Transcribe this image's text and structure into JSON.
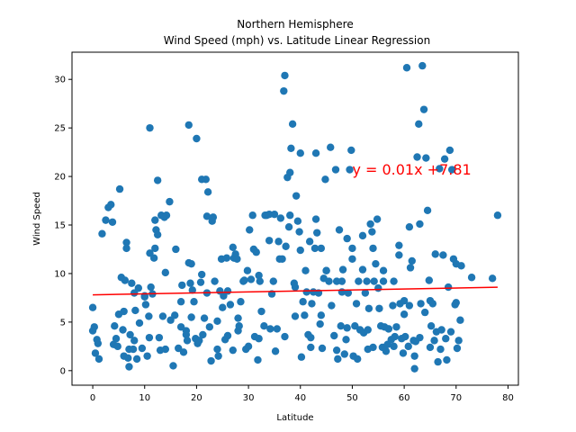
{
  "chart_data": {
    "type": "scatter",
    "title": "Northern Hemisphere",
    "subtitle": "Wind Speed (mph) vs. Latitude Linear Regression",
    "xlabel": "Latitude",
    "ylabel": "Wind Speed",
    "xlim": [
      -4,
      82
    ],
    "ylim": [
      -1.5,
      32.8
    ],
    "xticks": [
      0,
      10,
      20,
      30,
      40,
      50,
      60,
      70,
      80
    ],
    "yticks": [
      0,
      5,
      10,
      15,
      20,
      25,
      30
    ],
    "grid": false,
    "point_color": "#1f77b4",
    "regression": {
      "slope": 0.01,
      "intercept": 7.81,
      "x_range": [
        0,
        78
      ],
      "color": "#ff0000",
      "equation_label": "y = 0.01x +7.81",
      "label_x": 50,
      "label_y": 20.2
    },
    "points": [
      [
        0,
        6.5
      ],
      [
        0,
        4.1
      ],
      [
        0.3,
        4.5
      ],
      [
        0.5,
        1.8
      ],
      [
        0.8,
        3.2
      ],
      [
        1,
        2.8
      ],
      [
        1.2,
        1.2
      ],
      [
        1.8,
        14.1
      ],
      [
        2.5,
        15.5
      ],
      [
        3,
        16.8
      ],
      [
        3.5,
        17.1
      ],
      [
        3.8,
        15.3
      ],
      [
        4,
        2.7
      ],
      [
        4.2,
        4.6
      ],
      [
        4.5,
        3.3
      ],
      [
        4.8,
        2.5
      ],
      [
        5,
        5.8
      ],
      [
        5.2,
        18.7
      ],
      [
        5.5,
        9.6
      ],
      [
        5.8,
        4.2
      ],
      [
        6,
        1.5
      ],
      [
        6,
        6.1
      ],
      [
        6.2,
        9.3
      ],
      [
        6.5,
        13.2
      ],
      [
        6.5,
        12.6
      ],
      [
        6.8,
        1.3
      ],
      [
        7,
        0.4
      ],
      [
        7,
        2.2
      ],
      [
        7.2,
        3.7
      ],
      [
        7.5,
        9.0
      ],
      [
        7.8,
        2.2
      ],
      [
        8,
        3.1
      ],
      [
        8,
        8.0
      ],
      [
        8.2,
        6.2
      ],
      [
        8.5,
        1.2
      ],
      [
        8.8,
        8.5
      ],
      [
        9,
        4.9
      ],
      [
        9.5,
        2.3
      ],
      [
        10,
        7.7
      ],
      [
        10,
        7.6
      ],
      [
        10.2,
        6.8
      ],
      [
        10.5,
        1.5
      ],
      [
        10.8,
        5.6
      ],
      [
        10.9,
        3.4
      ],
      [
        11,
        12.1
      ],
      [
        11,
        25.0
      ],
      [
        11.2,
        8.6
      ],
      [
        11.5,
        7.9
      ],
      [
        11.8,
        11.6
      ],
      [
        12,
        12.6
      ],
      [
        12,
        15.5
      ],
      [
        12.2,
        14.5
      ],
      [
        12.5,
        14.0
      ],
      [
        12.5,
        19.6
      ],
      [
        12.8,
        3.4
      ],
      [
        13,
        2.1
      ],
      [
        13.2,
        16.0
      ],
      [
        13.5,
        5.6
      ],
      [
        13.8,
        15.8
      ],
      [
        14,
        2.2
      ],
      [
        14,
        10.1
      ],
      [
        14.2,
        16.0
      ],
      [
        14.8,
        17.4
      ],
      [
        15,
        5.2
      ],
      [
        15.5,
        0.5
      ],
      [
        15.8,
        5.7
      ],
      [
        16,
        12.5
      ],
      [
        16.5,
        2.3
      ],
      [
        17,
        7.1
      ],
      [
        17,
        4.5
      ],
      [
        17.2,
        8.8
      ],
      [
        17.5,
        1.9
      ],
      [
        18,
        4.1
      ],
      [
        18,
        3.7
      ],
      [
        18.2,
        3.1
      ],
      [
        18.5,
        25.3
      ],
      [
        18.5,
        11.1
      ],
      [
        18.8,
        9.0
      ],
      [
        19,
        11.0
      ],
      [
        19,
        5.5
      ],
      [
        19.2,
        8.3
      ],
      [
        19.5,
        7.1
      ],
      [
        19.8,
        3.3
      ],
      [
        20,
        23.9
      ],
      [
        20.2,
        2.8
      ],
      [
        20.5,
        3.1
      ],
      [
        20.8,
        9.1
      ],
      [
        21,
        9.9
      ],
      [
        21,
        19.7
      ],
      [
        21.2,
        3.7
      ],
      [
        21.5,
        5.4
      ],
      [
        21.8,
        19.7
      ],
      [
        22,
        15.9
      ],
      [
        22,
        8.0
      ],
      [
        22.2,
        18.4
      ],
      [
        22.5,
        4.5
      ],
      [
        22.8,
        1.0
      ],
      [
        23,
        15.4
      ],
      [
        23.2,
        15.8
      ],
      [
        23.5,
        9.2
      ],
      [
        24,
        2.2
      ],
      [
        24,
        5.1
      ],
      [
        24.2,
        1.5
      ],
      [
        24.5,
        8.2
      ],
      [
        24.8,
        11.5
      ],
      [
        25,
        6.5
      ],
      [
        25.2,
        7.7
      ],
      [
        25.5,
        3.2
      ],
      [
        25.8,
        11.6
      ],
      [
        26,
        8.2
      ],
      [
        26,
        3.6
      ],
      [
        26.5,
        6.8
      ],
      [
        27,
        12.7
      ],
      [
        27,
        2.1
      ],
      [
        27.2,
        11.6
      ],
      [
        27.5,
        12.0
      ],
      [
        27.8,
        11.5
      ],
      [
        28,
        4.1
      ],
      [
        28,
        5.4
      ],
      [
        28.2,
        4.6
      ],
      [
        28.5,
        7.1
      ],
      [
        29,
        9.2
      ],
      [
        29.2,
        9.3
      ],
      [
        29.5,
        2.2
      ],
      [
        29.8,
        10.3
      ],
      [
        30,
        2.5
      ],
      [
        30.2,
        14.5
      ],
      [
        30.5,
        9.4
      ],
      [
        30.8,
        16.0
      ],
      [
        31,
        12.5
      ],
      [
        31.2,
        3.5
      ],
      [
        31.5,
        12.2
      ],
      [
        31.8,
        1.1
      ],
      [
        32,
        9.8
      ],
      [
        32,
        3.3
      ],
      [
        32.2,
        9.2
      ],
      [
        32.5,
        6.1
      ],
      [
        33,
        4.6
      ],
      [
        33.2,
        16.0
      ],
      [
        33.5,
        16.0
      ],
      [
        34,
        16.1
      ],
      [
        34,
        13.4
      ],
      [
        34.2,
        4.3
      ],
      [
        34.5,
        7.9
      ],
      [
        34.8,
        9.2
      ],
      [
        35,
        16.1
      ],
      [
        35.2,
        2.0
      ],
      [
        35.5,
        4.3
      ],
      [
        35.8,
        13.3
      ],
      [
        36,
        11.5
      ],
      [
        36.2,
        15.7
      ],
      [
        36.5,
        11.5
      ],
      [
        36.8,
        28.8
      ],
      [
        37,
        30.4
      ],
      [
        37,
        3.5
      ],
      [
        37.2,
        12.8
      ],
      [
        37.5,
        19.9
      ],
      [
        37.8,
        14.8
      ],
      [
        38,
        16.0
      ],
      [
        38,
        20.4
      ],
      [
        38.2,
        22.9
      ],
      [
        38.5,
        25.4
      ],
      [
        38.8,
        9.0
      ],
      [
        39,
        5.6
      ],
      [
        39,
        8.6
      ],
      [
        39.2,
        18.0
      ],
      [
        39.5,
        15.4
      ],
      [
        39.8,
        14.3
      ],
      [
        40,
        12.4
      ],
      [
        40,
        22.4
      ],
      [
        40.2,
        1.4
      ],
      [
        40.5,
        7.1
      ],
      [
        40.8,
        5.7
      ],
      [
        41,
        10.3
      ],
      [
        41.2,
        8.1
      ],
      [
        41.5,
        3.7
      ],
      [
        41.8,
        13.3
      ],
      [
        42,
        2.4
      ],
      [
        42,
        3.4
      ],
      [
        42.2,
        6.9
      ],
      [
        42.5,
        8.1
      ],
      [
        42.8,
        12.6
      ],
      [
        43,
        15.6
      ],
      [
        43,
        22.4
      ],
      [
        43.2,
        14.2
      ],
      [
        43.5,
        8.0
      ],
      [
        43.8,
        4.8
      ],
      [
        44,
        12.6
      ],
      [
        44,
        5.7
      ],
      [
        44.2,
        2.3
      ],
      [
        44.5,
        9.5
      ],
      [
        44.8,
        19.7
      ],
      [
        45,
        10.3
      ],
      [
        45,
        10.3
      ],
      [
        45.5,
        9.2
      ],
      [
        45.8,
        23.0
      ],
      [
        46,
        6.7
      ],
      [
        46.5,
        3.6
      ],
      [
        46.8,
        20.7
      ],
      [
        47,
        9.2
      ],
      [
        47,
        2.1
      ],
      [
        47.2,
        1.2
      ],
      [
        47.5,
        14.5
      ],
      [
        47.8,
        4.6
      ],
      [
        48,
        8.1
      ],
      [
        48,
        9.2
      ],
      [
        48.2,
        10.4
      ],
      [
        48.5,
        1.7
      ],
      [
        48.8,
        3.2
      ],
      [
        49,
        13.6
      ],
      [
        49,
        4.4
      ],
      [
        49.2,
        8.0
      ],
      [
        49.5,
        20.7
      ],
      [
        49.8,
        22.7
      ],
      [
        50,
        12.6
      ],
      [
        50,
        11.5
      ],
      [
        50.2,
        1.5
      ],
      [
        50.5,
        4.6
      ],
      [
        50.8,
        6.9
      ],
      [
        51,
        1.2
      ],
      [
        51.2,
        9.2
      ],
      [
        51.5,
        4.2
      ],
      [
        52,
        13.9
      ],
      [
        52,
        10.4
      ],
      [
        52.2,
        3.9
      ],
      [
        52.5,
        8.0
      ],
      [
        52.8,
        9.2
      ],
      [
        53,
        2.2
      ],
      [
        53,
        4.2
      ],
      [
        53.2,
        6.4
      ],
      [
        53.5,
        15.1
      ],
      [
        53.8,
        14.3
      ],
      [
        54,
        12.6
      ],
      [
        54,
        2.4
      ],
      [
        54.2,
        9.2
      ],
      [
        54.5,
        11.0
      ],
      [
        54.8,
        15.6
      ],
      [
        55,
        8.5
      ],
      [
        55.2,
        6.4
      ],
      [
        55.5,
        4.6
      ],
      [
        55.8,
        2.4
      ],
      [
        56,
        9.2
      ],
      [
        56,
        10.3
      ],
      [
        56.2,
        4.5
      ],
      [
        56.5,
        2.0
      ],
      [
        56.8,
        2.7
      ],
      [
        57,
        4.3
      ],
      [
        57,
        4.3
      ],
      [
        57.5,
        3.2
      ],
      [
        57.8,
        6.7
      ],
      [
        58,
        9.2
      ],
      [
        58,
        2.5
      ],
      [
        58.2,
        3.5
      ],
      [
        58.5,
        4.5
      ],
      [
        59,
        11.9
      ],
      [
        59,
        12.9
      ],
      [
        59.2,
        6.9
      ],
      [
        59.5,
        3.3
      ],
      [
        59.8,
        1.8
      ],
      [
        60,
        5.8
      ],
      [
        60,
        7.2
      ],
      [
        60.2,
        3.5
      ],
      [
        60.5,
        31.2
      ],
      [
        60.8,
        2.5
      ],
      [
        61,
        14.8
      ],
      [
        61,
        6.7
      ],
      [
        61.2,
        10.6
      ],
      [
        61.5,
        11.3
      ],
      [
        61.8,
        3.1
      ],
      [
        62,
        0.2
      ],
      [
        62,
        1.5
      ],
      [
        62.2,
        3.0
      ],
      [
        62.5,
        22.0
      ],
      [
        62.8,
        25.4
      ],
      [
        63,
        3.4
      ],
      [
        63,
        15.1
      ],
      [
        63.2,
        6.9
      ],
      [
        63.5,
        31.4
      ],
      [
        63.8,
        26.9
      ],
      [
        64,
        6.0
      ],
      [
        64.2,
        21.9
      ],
      [
        64.5,
        16.5
      ],
      [
        64.8,
        9.3
      ],
      [
        65,
        7.2
      ],
      [
        65,
        2.4
      ],
      [
        65.2,
        4.6
      ],
      [
        65.5,
        6.9
      ],
      [
        65.8,
        3.1
      ],
      [
        66,
        12.0
      ],
      [
        66.2,
        4.0
      ],
      [
        66.5,
        0.9
      ],
      [
        66.8,
        20.8
      ],
      [
        67,
        2.2
      ],
      [
        67.2,
        4.2
      ],
      [
        67.5,
        11.9
      ],
      [
        67.8,
        21.8
      ],
      [
        68,
        3.3
      ],
      [
        68.2,
        1.1
      ],
      [
        68.5,
        8.6
      ],
      [
        68.8,
        22.7
      ],
      [
        69,
        4.0
      ],
      [
        69.2,
        20.7
      ],
      [
        69.5,
        11.5
      ],
      [
        69.8,
        6.8
      ],
      [
        70,
        7.0
      ],
      [
        70,
        11.0
      ],
      [
        70.2,
        2.3
      ],
      [
        70.5,
        3.1
      ],
      [
        70.8,
        5.2
      ],
      [
        71,
        10.8
      ],
      [
        73,
        9.6
      ],
      [
        77,
        9.5
      ],
      [
        78,
        16.0
      ]
    ]
  }
}
